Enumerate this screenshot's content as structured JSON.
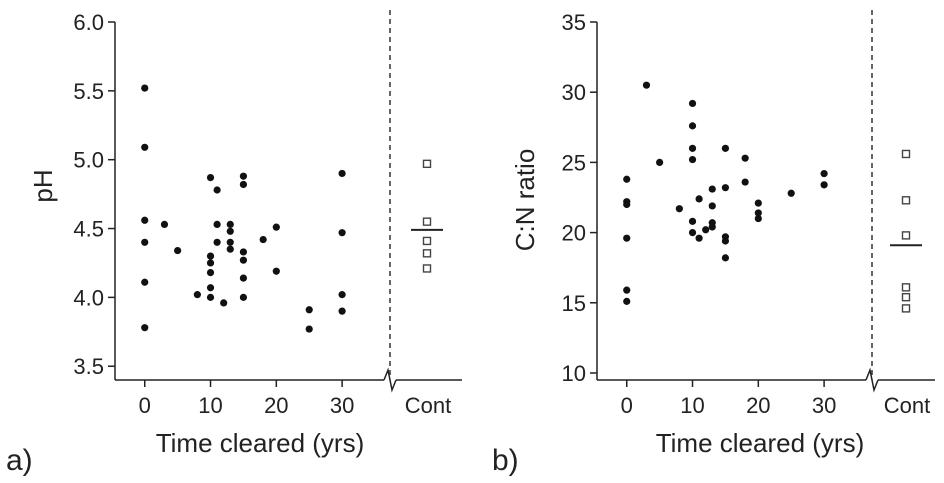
{
  "chart_data": [
    {
      "type": "scatter",
      "panel_label": "a)",
      "xlabel": "Time cleared (yrs)",
      "ylabel": "pH",
      "xlim": [
        -3,
        35
      ],
      "ylim": [
        3.4,
        6.0
      ],
      "xticks": [
        0,
        10,
        20,
        30
      ],
      "yticks": [
        "3.5",
        "4.0",
        "4.5",
        "5.0",
        "5.5",
        "6.0"
      ],
      "control_label": "Cont",
      "points": [
        [
          0,
          5.52
        ],
        [
          0,
          5.09
        ],
        [
          0,
          4.56
        ],
        [
          0,
          4.4
        ],
        [
          0,
          4.11
        ],
        [
          0,
          3.78
        ],
        [
          3,
          4.53
        ],
        [
          5,
          4.34
        ],
        [
          8,
          4.02
        ],
        [
          10,
          4.87
        ],
        [
          10,
          4.3
        ],
        [
          10,
          4.25
        ],
        [
          10,
          4.18
        ],
        [
          10,
          4.07
        ],
        [
          10,
          4.0
        ],
        [
          11,
          4.78
        ],
        [
          11,
          4.53
        ],
        [
          11,
          4.4
        ],
        [
          12,
          3.96
        ],
        [
          13,
          4.53
        ],
        [
          13,
          4.48
        ],
        [
          13,
          4.4
        ],
        [
          13,
          4.35
        ],
        [
          15,
          4.88
        ],
        [
          15,
          4.82
        ],
        [
          15,
          4.33
        ],
        [
          15,
          4.27
        ],
        [
          15,
          4.14
        ],
        [
          15,
          4.0
        ],
        [
          18,
          4.42
        ],
        [
          20,
          4.51
        ],
        [
          20,
          4.19
        ],
        [
          25,
          3.91
        ],
        [
          25,
          3.77
        ],
        [
          30,
          4.9
        ],
        [
          30,
          4.47
        ],
        [
          30,
          4.02
        ],
        [
          30,
          3.9
        ]
      ],
      "control_values": [
        4.97,
        4.55,
        4.41,
        4.32,
        4.21
      ],
      "control_mean": 4.49
    },
    {
      "type": "scatter",
      "panel_label": "b)",
      "xlabel": "Time cleared (yrs)",
      "ylabel": "C:N ratio",
      "xlim": [
        -3,
        35
      ],
      "ylim": [
        9.5,
        35
      ],
      "xticks": [
        0,
        10,
        20,
        30
      ],
      "yticks": [
        "10",
        "15",
        "20",
        "25",
        "30",
        "35"
      ],
      "control_label": "Cont",
      "points": [
        [
          0,
          23.8
        ],
        [
          0,
          22.2
        ],
        [
          0,
          22.0
        ],
        [
          0,
          19.6
        ],
        [
          0,
          15.9
        ],
        [
          0,
          15.1
        ],
        [
          3,
          30.5
        ],
        [
          5,
          25.0
        ],
        [
          8,
          21.7
        ],
        [
          10,
          29.2
        ],
        [
          10,
          27.6
        ],
        [
          10,
          26.0
        ],
        [
          10,
          25.2
        ],
        [
          10,
          20.8
        ],
        [
          10,
          20.0
        ],
        [
          11,
          22.4
        ],
        [
          11,
          19.6
        ],
        [
          12,
          20.2
        ],
        [
          13,
          23.1
        ],
        [
          13,
          21.9
        ],
        [
          13,
          20.7
        ],
        [
          13,
          20.4
        ],
        [
          15,
          26.0
        ],
        [
          15,
          23.2
        ],
        [
          15,
          19.7
        ],
        [
          15,
          19.4
        ],
        [
          15,
          18.2
        ],
        [
          18,
          25.3
        ],
        [
          18,
          23.6
        ],
        [
          20,
          22.1
        ],
        [
          20,
          21.4
        ],
        [
          20,
          21.0
        ],
        [
          25,
          22.8
        ],
        [
          30,
          24.2
        ],
        [
          30,
          23.4
        ]
      ],
      "control_values": [
        25.6,
        22.3,
        19.8,
        16.1,
        15.4,
        14.6
      ],
      "control_mean": 19.1
    }
  ]
}
